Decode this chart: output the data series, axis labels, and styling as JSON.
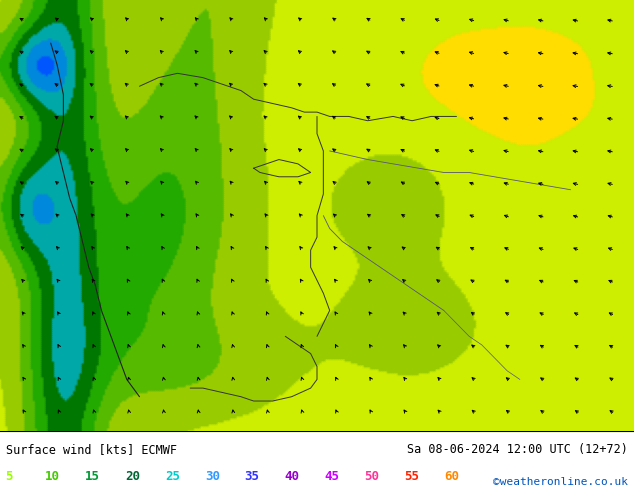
{
  "title_left": "Surface wind [kts] ECMWF",
  "title_right": "Sa 08-06-2024 12:00 UTC (12+72)",
  "credit": "©weatheronline.co.uk",
  "legend_values": [
    5,
    10,
    15,
    20,
    25,
    30,
    35,
    40,
    45,
    50,
    55,
    60
  ],
  "legend_colors": [
    "#99ff00",
    "#33cc00",
    "#009900",
    "#006633",
    "#00cccc",
    "#0099ff",
    "#0000ff",
    "#9900cc",
    "#ff00ff",
    "#ff0066",
    "#ff0000",
    "#ff9900"
  ],
  "wind_colors": [
    "#ffff00",
    "#ffee00",
    "#ffdd00",
    "#ccee00",
    "#99cc00",
    "#66bb00",
    "#33aa00",
    "#009900",
    "#007777",
    "#0099cc",
    "#0066ff",
    "#0033cc",
    "#0000aa"
  ],
  "bg_color": "#ffffff",
  "figsize": [
    6.34,
    4.9
  ],
  "dpi": 100
}
